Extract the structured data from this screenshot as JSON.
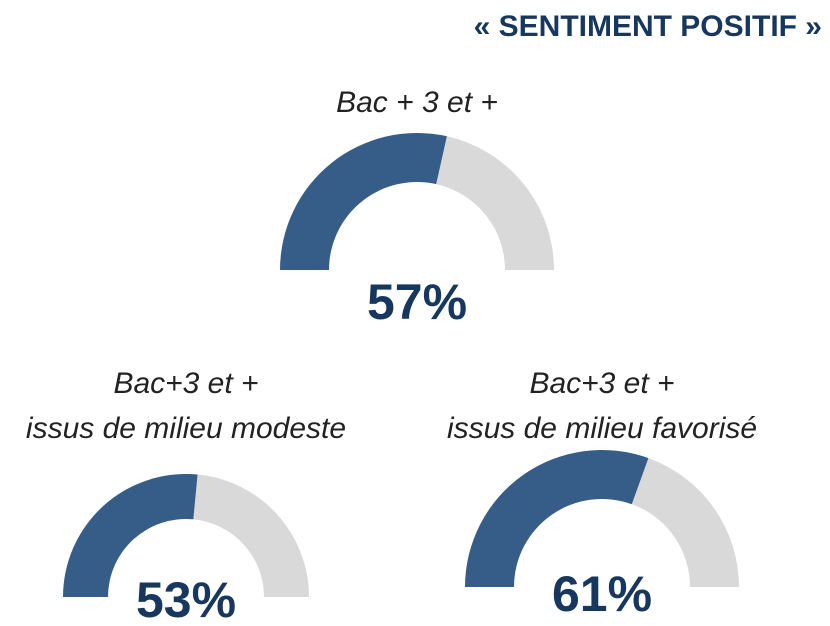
{
  "title": "« SENTIMENT POSITIF »",
  "chart_data": [
    {
      "type": "gauge",
      "title": "Bac + 3 et +",
      "values": [
        57
      ],
      "value_labels": [
        "57%"
      ],
      "ylim": [
        0,
        100
      ],
      "color": "#365d87",
      "track_color": "#d9d9d9"
    },
    {
      "type": "gauge",
      "title": "Bac+3 et +",
      "subtitle": "issus de milieu modeste",
      "values": [
        53
      ],
      "value_labels": [
        "53%"
      ],
      "ylim": [
        0,
        100
      ],
      "color": "#365d87",
      "track_color": "#d9d9d9"
    },
    {
      "type": "gauge",
      "title": "Bac+3 et +",
      "subtitle": "issus de milieu favorisé",
      "values": [
        61
      ],
      "value_labels": [
        "61%"
      ],
      "ylim": [
        0,
        100
      ],
      "color": "#365d87",
      "track_color": "#d9d9d9"
    }
  ]
}
